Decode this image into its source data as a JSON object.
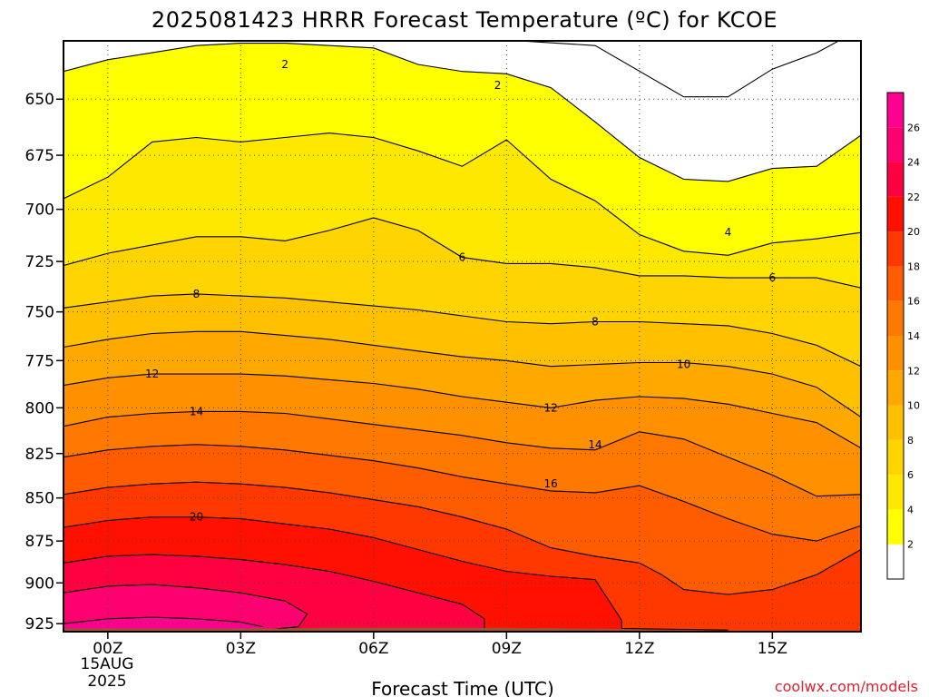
{
  "chart_data": {
    "type": "contour",
    "title": "2025081423 HRRR Forecast Temperature (ºC) for KCOE",
    "xlabel": "Forecast Time (UTC)",
    "ylabel": "",
    "x_ticks": [
      "00Z",
      "03Z",
      "06Z",
      "09Z",
      "12Z",
      "15Z"
    ],
    "x_tick_hours": [
      0,
      3,
      6,
      9,
      12,
      15
    ],
    "x_date_label": [
      "15AUG",
      "2025"
    ],
    "xlim": [
      -1,
      17
    ],
    "y_ticks": [
      650,
      675,
      700,
      725,
      750,
      775,
      800,
      825,
      850,
      875,
      900,
      925
    ],
    "ylim": [
      930,
      625
    ],
    "y_scale": "log-pressure (reversed)",
    "grid": true,
    "colorbar": {
      "labels": [
        "2",
        "4",
        "6",
        "8",
        "10",
        "12",
        "14",
        "16",
        "18",
        "20",
        "22",
        "24",
        "26"
      ],
      "colors": [
        "#ffff00",
        "#ffe800",
        "#ffd400",
        "#ffc000",
        "#ffa800",
        "#ff9000",
        "#ff7800",
        "#ff5c00",
        "#ff3800",
        "#ff1000",
        "#ff0040",
        "#ff0070",
        "#ff0090"
      ],
      "below_color": "#ffffff"
    },
    "fill_colors": [
      "#ffff00",
      "#ffe800",
      "#ffd400",
      "#ffc000",
      "#ffa800",
      "#ff9000",
      "#ff7800",
      "#ff5c00",
      "#ff3800",
      "#ff1000",
      "#ff0040",
      "#ff0070",
      "#ff0090"
    ],
    "line_colors": {
      "default": "#000000",
      "zero": "#e0007a"
    },
    "isotherms": [
      {
        "value": 0,
        "points": [
          [
            5.0,
            620
          ],
          [
            11,
            627
          ],
          [
            13,
            649
          ],
          [
            14,
            649
          ],
          [
            15,
            637
          ],
          [
            16,
            630
          ],
          [
            17,
            620
          ]
        ]
      },
      {
        "value": 2,
        "points": [
          [
            -1,
            638
          ],
          [
            0,
            633
          ],
          [
            1,
            630
          ],
          [
            2,
            627
          ],
          [
            3,
            626
          ],
          [
            4,
            626
          ],
          [
            5,
            627
          ],
          [
            6,
            628
          ],
          [
            7,
            635
          ],
          [
            8,
            638
          ],
          [
            9,
            639
          ],
          [
            10,
            645
          ],
          [
            11,
            660
          ],
          [
            12,
            676
          ],
          [
            13,
            686
          ],
          [
            14,
            687
          ],
          [
            15,
            681
          ],
          [
            16,
            680
          ],
          [
            17,
            666
          ]
        ]
      },
      {
        "value": 4,
        "points": [
          [
            -1,
            695
          ],
          [
            0,
            685
          ],
          [
            1,
            669
          ],
          [
            2,
            667
          ],
          [
            3,
            669
          ],
          [
            4,
            667
          ],
          [
            5,
            665
          ],
          [
            6,
            667
          ],
          [
            7,
            673
          ],
          [
            8,
            680
          ],
          [
            9,
            668
          ],
          [
            10,
            686
          ],
          [
            11,
            696
          ],
          [
            12,
            712
          ],
          [
            13,
            720
          ],
          [
            14,
            722
          ],
          [
            15,
            716
          ],
          [
            16,
            714
          ],
          [
            17,
            711
          ]
        ]
      },
      {
        "value": 6,
        "points": [
          [
            -1,
            727
          ],
          [
            0,
            721
          ],
          [
            1,
            717
          ],
          [
            2,
            713
          ],
          [
            3,
            713
          ],
          [
            4,
            715
          ],
          [
            5,
            710
          ],
          [
            6,
            704
          ],
          [
            7,
            710
          ],
          [
            8,
            723
          ],
          [
            9,
            726
          ],
          [
            10,
            726
          ],
          [
            11,
            728
          ],
          [
            12,
            732
          ],
          [
            13,
            732
          ],
          [
            14,
            733
          ],
          [
            15,
            733
          ],
          [
            16,
            733
          ],
          [
            17,
            738
          ]
        ]
      },
      {
        "value": 8,
        "points": [
          [
            -1,
            748
          ],
          [
            0,
            745
          ],
          [
            1,
            742
          ],
          [
            2,
            741
          ],
          [
            3,
            742
          ],
          [
            4,
            743
          ],
          [
            5,
            745
          ],
          [
            6,
            747
          ],
          [
            7,
            749
          ],
          [
            8,
            752
          ],
          [
            9,
            755
          ],
          [
            10,
            756
          ],
          [
            11,
            755
          ],
          [
            12,
            755
          ],
          [
            13,
            756
          ],
          [
            14,
            757
          ],
          [
            15,
            761
          ],
          [
            16,
            767
          ],
          [
            17,
            778
          ]
        ]
      },
      {
        "value": 10,
        "points": [
          [
            -1,
            768
          ],
          [
            0,
            764
          ],
          [
            1,
            761
          ],
          [
            2,
            760
          ],
          [
            3,
            760
          ],
          [
            4,
            762
          ],
          [
            5,
            764
          ],
          [
            6,
            767
          ],
          [
            7,
            770
          ],
          [
            8,
            773
          ],
          [
            9,
            775
          ],
          [
            10,
            778
          ],
          [
            11,
            777
          ],
          [
            12,
            776
          ],
          [
            13,
            776
          ],
          [
            14,
            778
          ],
          [
            15,
            782
          ],
          [
            16,
            789
          ],
          [
            17,
            805
          ]
        ]
      },
      {
        "value": 12,
        "points": [
          [
            -1,
            788
          ],
          [
            0,
            784
          ],
          [
            1,
            782
          ],
          [
            2,
            782
          ],
          [
            3,
            782
          ],
          [
            4,
            783
          ],
          [
            5,
            785
          ],
          [
            6,
            787
          ],
          [
            7,
            790
          ],
          [
            8,
            794
          ],
          [
            9,
            797
          ],
          [
            10,
            800
          ],
          [
            11,
            796
          ],
          [
            12,
            794
          ],
          [
            13,
            795
          ],
          [
            14,
            798
          ],
          [
            15,
            803
          ],
          [
            16,
            808
          ],
          [
            17,
            822
          ]
        ]
      },
      {
        "value": 14,
        "points": [
          [
            -1,
            810
          ],
          [
            0,
            805
          ],
          [
            1,
            803
          ],
          [
            2,
            802
          ],
          [
            3,
            802
          ],
          [
            4,
            803
          ],
          [
            5,
            806
          ],
          [
            6,
            809
          ],
          [
            7,
            812
          ],
          [
            8,
            815
          ],
          [
            9,
            819
          ],
          [
            10,
            822
          ],
          [
            11,
            823
          ],
          [
            12,
            813
          ],
          [
            13,
            817
          ],
          [
            14,
            827
          ],
          [
            15,
            837
          ],
          [
            16,
            849
          ],
          [
            17,
            848
          ]
        ]
      },
      {
        "value": 16,
        "points": [
          [
            -1,
            827
          ],
          [
            0,
            823
          ],
          [
            1,
            821
          ],
          [
            2,
            820
          ],
          [
            3,
            821
          ],
          [
            4,
            823
          ],
          [
            5,
            826
          ],
          [
            6,
            829
          ],
          [
            7,
            833
          ],
          [
            8,
            838
          ],
          [
            9,
            842
          ],
          [
            10,
            846
          ],
          [
            11,
            847
          ],
          [
            12,
            843
          ],
          [
            13,
            852
          ],
          [
            14,
            862
          ],
          [
            15,
            871
          ],
          [
            16,
            875
          ],
          [
            17,
            866
          ]
        ]
      },
      {
        "value": 18,
        "points": [
          [
            -1,
            848
          ],
          [
            0,
            844
          ],
          [
            1,
            842
          ],
          [
            2,
            841
          ],
          [
            3,
            842
          ],
          [
            4,
            844
          ],
          [
            5,
            847
          ],
          [
            6,
            851
          ],
          [
            7,
            855
          ],
          [
            8,
            861
          ],
          [
            9,
            868
          ],
          [
            10,
            879
          ],
          [
            11,
            884
          ],
          [
            12,
            888
          ],
          [
            12.5,
            895
          ],
          [
            13,
            904
          ],
          [
            14,
            907
          ],
          [
            15,
            904
          ],
          [
            16,
            895
          ],
          [
            17,
            880
          ]
        ]
      },
      {
        "value": 20,
        "points": [
          [
            -1,
            867
          ],
          [
            0,
            863
          ],
          [
            1,
            861
          ],
          [
            2,
            861
          ],
          [
            3,
            862
          ],
          [
            4,
            865
          ],
          [
            5,
            868
          ],
          [
            6,
            873
          ],
          [
            7,
            880
          ],
          [
            8,
            887
          ],
          [
            9,
            893
          ],
          [
            10,
            896
          ],
          [
            11,
            898
          ],
          [
            11.6,
            923
          ],
          [
            11.6,
            928
          ],
          [
            14,
            929
          ]
        ]
      },
      {
        "value": 22,
        "points": [
          [
            -1,
            888
          ],
          [
            0,
            884
          ],
          [
            1,
            883
          ],
          [
            2,
            884
          ],
          [
            3,
            886
          ],
          [
            4,
            889
          ],
          [
            5,
            893
          ],
          [
            6,
            899
          ],
          [
            7,
            906
          ],
          [
            8,
            913
          ],
          [
            8.5,
            922
          ],
          [
            8.5,
            929
          ]
        ]
      },
      {
        "value": 24,
        "points": [
          [
            -1,
            906
          ],
          [
            0,
            902
          ],
          [
            1,
            901
          ],
          [
            2,
            903
          ],
          [
            3,
            906
          ],
          [
            4,
            911
          ],
          [
            4.5,
            919
          ],
          [
            4.3,
            927
          ],
          [
            3.5,
            929
          ]
        ]
      },
      {
        "value": 26,
        "points": [
          [
            -1,
            925
          ],
          [
            0,
            922
          ],
          [
            1,
            921
          ],
          [
            2,
            922
          ],
          [
            3,
            924
          ],
          [
            3.5,
            927
          ]
        ]
      }
    ],
    "contour_labels": [
      {
        "text": "2",
        "x": 4,
        "p": 635
      },
      {
        "text": "2",
        "x": 8.8,
        "p": 644
      },
      {
        "text": "4",
        "x": 14,
        "p": 711
      },
      {
        "text": "6",
        "x": 8,
        "p": 723
      },
      {
        "text": "6",
        "x": 15,
        "p": 733
      },
      {
        "text": "8",
        "x": 2,
        "p": 741
      },
      {
        "text": "8",
        "x": 11,
        "p": 755
      },
      {
        "text": "10",
        "x": 13,
        "p": 777
      },
      {
        "text": "12",
        "x": 1,
        "p": 782
      },
      {
        "text": "12",
        "x": 10,
        "p": 800
      },
      {
        "text": "14",
        "x": 2,
        "p": 802
      },
      {
        "text": "14",
        "x": 11,
        "p": 820
      },
      {
        "text": "16",
        "x": 10,
        "p": 842
      },
      {
        "text": "20",
        "x": 2,
        "p": 861
      }
    ],
    "surface": {
      "color": "#a0522d",
      "points": [
        [
          -1,
          928
        ],
        [
          4,
          928
        ],
        [
          5,
          927.5
        ],
        [
          8,
          927.5
        ],
        [
          10,
          927.8
        ],
        [
          12,
          928.5
        ],
        [
          14,
          929.5
        ],
        [
          16,
          930
        ],
        [
          17,
          930
        ]
      ]
    }
  },
  "watermark": "coolwx.com/models"
}
